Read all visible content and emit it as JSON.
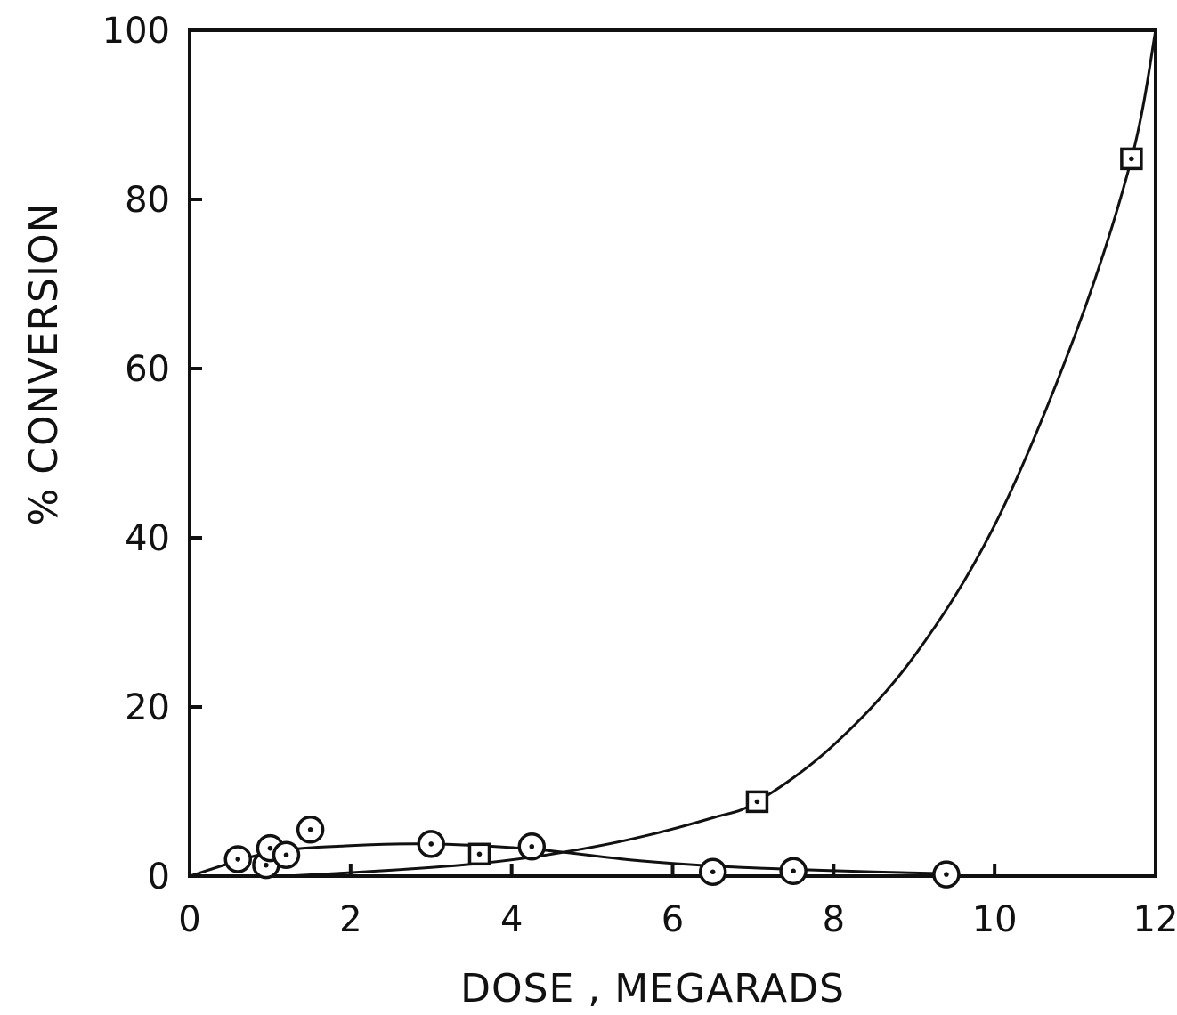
{
  "chart_data": {
    "type": "scatter",
    "title": "",
    "xlabel": "DOSE , MEGARADS",
    "ylabel": "% CONVERSION",
    "xlim": [
      0,
      12
    ],
    "ylim": [
      0,
      100
    ],
    "xticks": [
      0,
      2,
      4,
      6,
      8,
      10,
      12
    ],
    "yticks": [
      0,
      20,
      40,
      60,
      80,
      100
    ],
    "xtick_labels": [
      "0",
      "2",
      "4",
      "6",
      "8",
      "10",
      "12"
    ],
    "ytick_labels": [
      "0",
      "20",
      "40",
      "60",
      "80",
      "100"
    ],
    "grid": false,
    "legend": "none",
    "series": [
      {
        "marker": "circle",
        "points": [
          {
            "x": 0.6,
            "y": 2.0
          },
          {
            "x": 0.95,
            "y": 1.3
          },
          {
            "x": 1.0,
            "y": 3.3
          },
          {
            "x": 1.2,
            "y": 2.5
          },
          {
            "x": 1.5,
            "y": 5.5
          },
          {
            "x": 3.0,
            "y": 3.8
          },
          {
            "x": 4.25,
            "y": 3.5
          },
          {
            "x": 6.5,
            "y": 0.5
          },
          {
            "x": 7.5,
            "y": 0.6
          },
          {
            "x": 9.4,
            "y": 0.2
          }
        ],
        "curve": [
          [
            0.0,
            0.0
          ],
          [
            1.0,
            2.8
          ],
          [
            2.0,
            3.6
          ],
          [
            3.0,
            3.8
          ],
          [
            4.25,
            3.2
          ],
          [
            5.5,
            1.9
          ],
          [
            6.5,
            1.2
          ],
          [
            7.5,
            0.8
          ],
          [
            8.5,
            0.5
          ],
          [
            9.4,
            0.3
          ]
        ]
      },
      {
        "marker": "square",
        "points": [
          {
            "x": 3.6,
            "y": 2.6
          },
          {
            "x": 7.05,
            "y": 8.8
          },
          {
            "x": 11.7,
            "y": 84.8
          }
        ],
        "curve": [
          [
            1.2,
            0.0
          ],
          [
            2.5,
            0.7
          ],
          [
            3.6,
            1.5
          ],
          [
            4.5,
            2.6
          ],
          [
            5.5,
            4.4
          ],
          [
            6.5,
            6.9
          ],
          [
            7.05,
            8.8
          ],
          [
            8.0,
            15.5
          ],
          [
            9.0,
            26.0
          ],
          [
            10.0,
            41.5
          ],
          [
            11.0,
            64.0
          ],
          [
            11.7,
            84.8
          ],
          [
            12.0,
            100.0
          ]
        ]
      }
    ]
  }
}
